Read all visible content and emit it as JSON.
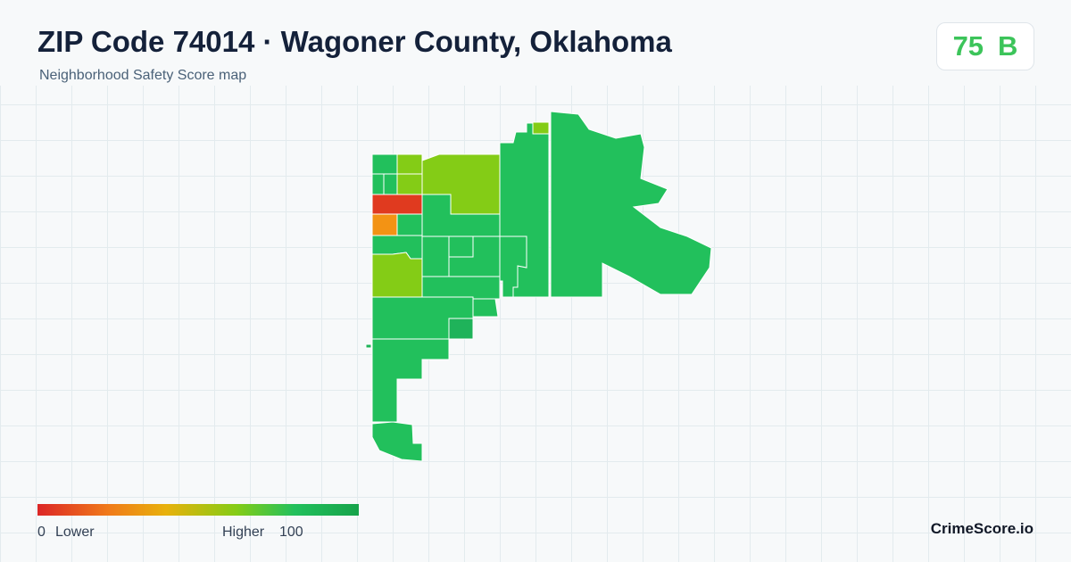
{
  "header": {
    "title": "ZIP Code 74014 · Wagoner County, Oklahoma",
    "subtitle": "Neighborhood Safety Score map"
  },
  "badge": {
    "score": 75,
    "grade": "B"
  },
  "legend": {
    "min": 0,
    "low_label": "Lower",
    "high_label": "Higher",
    "max": 100
  },
  "footer": {
    "brand": "CrimeScore.io"
  }
}
